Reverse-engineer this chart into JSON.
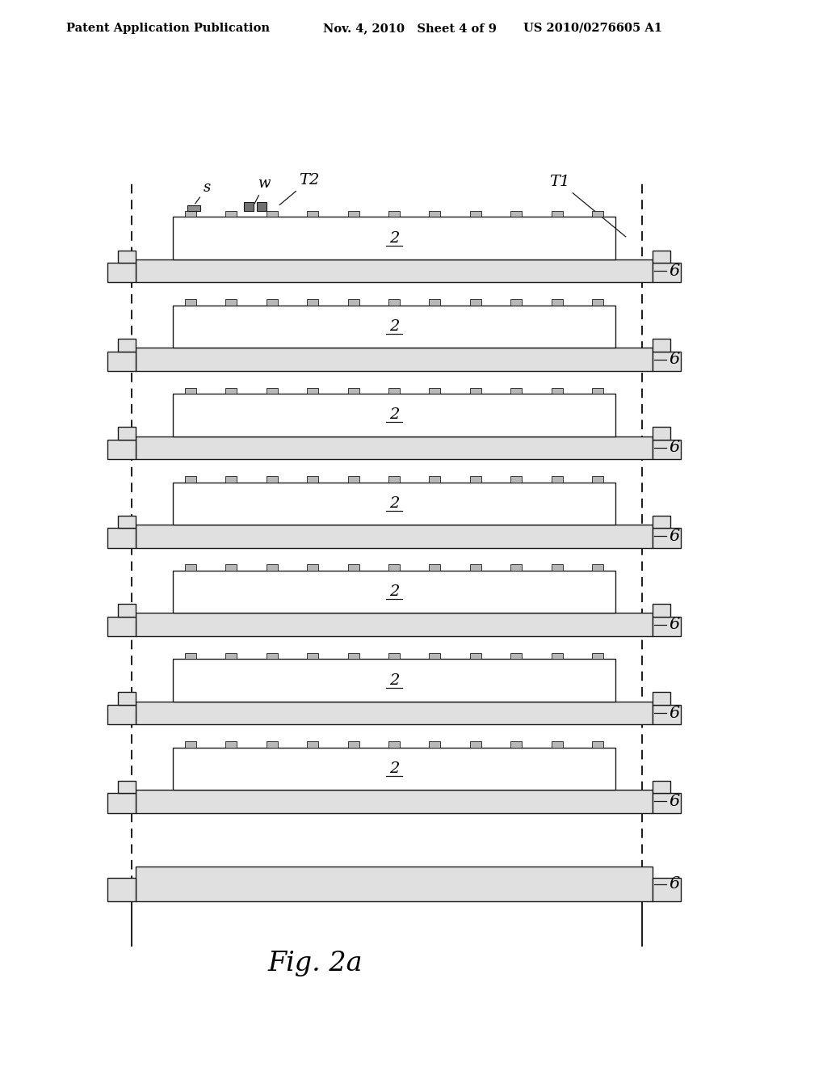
{
  "bg_color": "#ffffff",
  "header_text_left": "Patent Application Publication",
  "header_text_mid": "Nov. 4, 2010   Sheet 4 of 9",
  "header_text_right": "US 2010/0276605 A1",
  "header_fontsize": 10.5,
  "fig_label": "Fig. 2a",
  "fig_label_fontsize": 24,
  "num_layers": 8,
  "lw": 1.0,
  "line_color": "#1a1a1a",
  "board_fill": "#e0e0e0",
  "chip_fill": "#ffffff",
  "pad_fill": "#b8b8b8"
}
